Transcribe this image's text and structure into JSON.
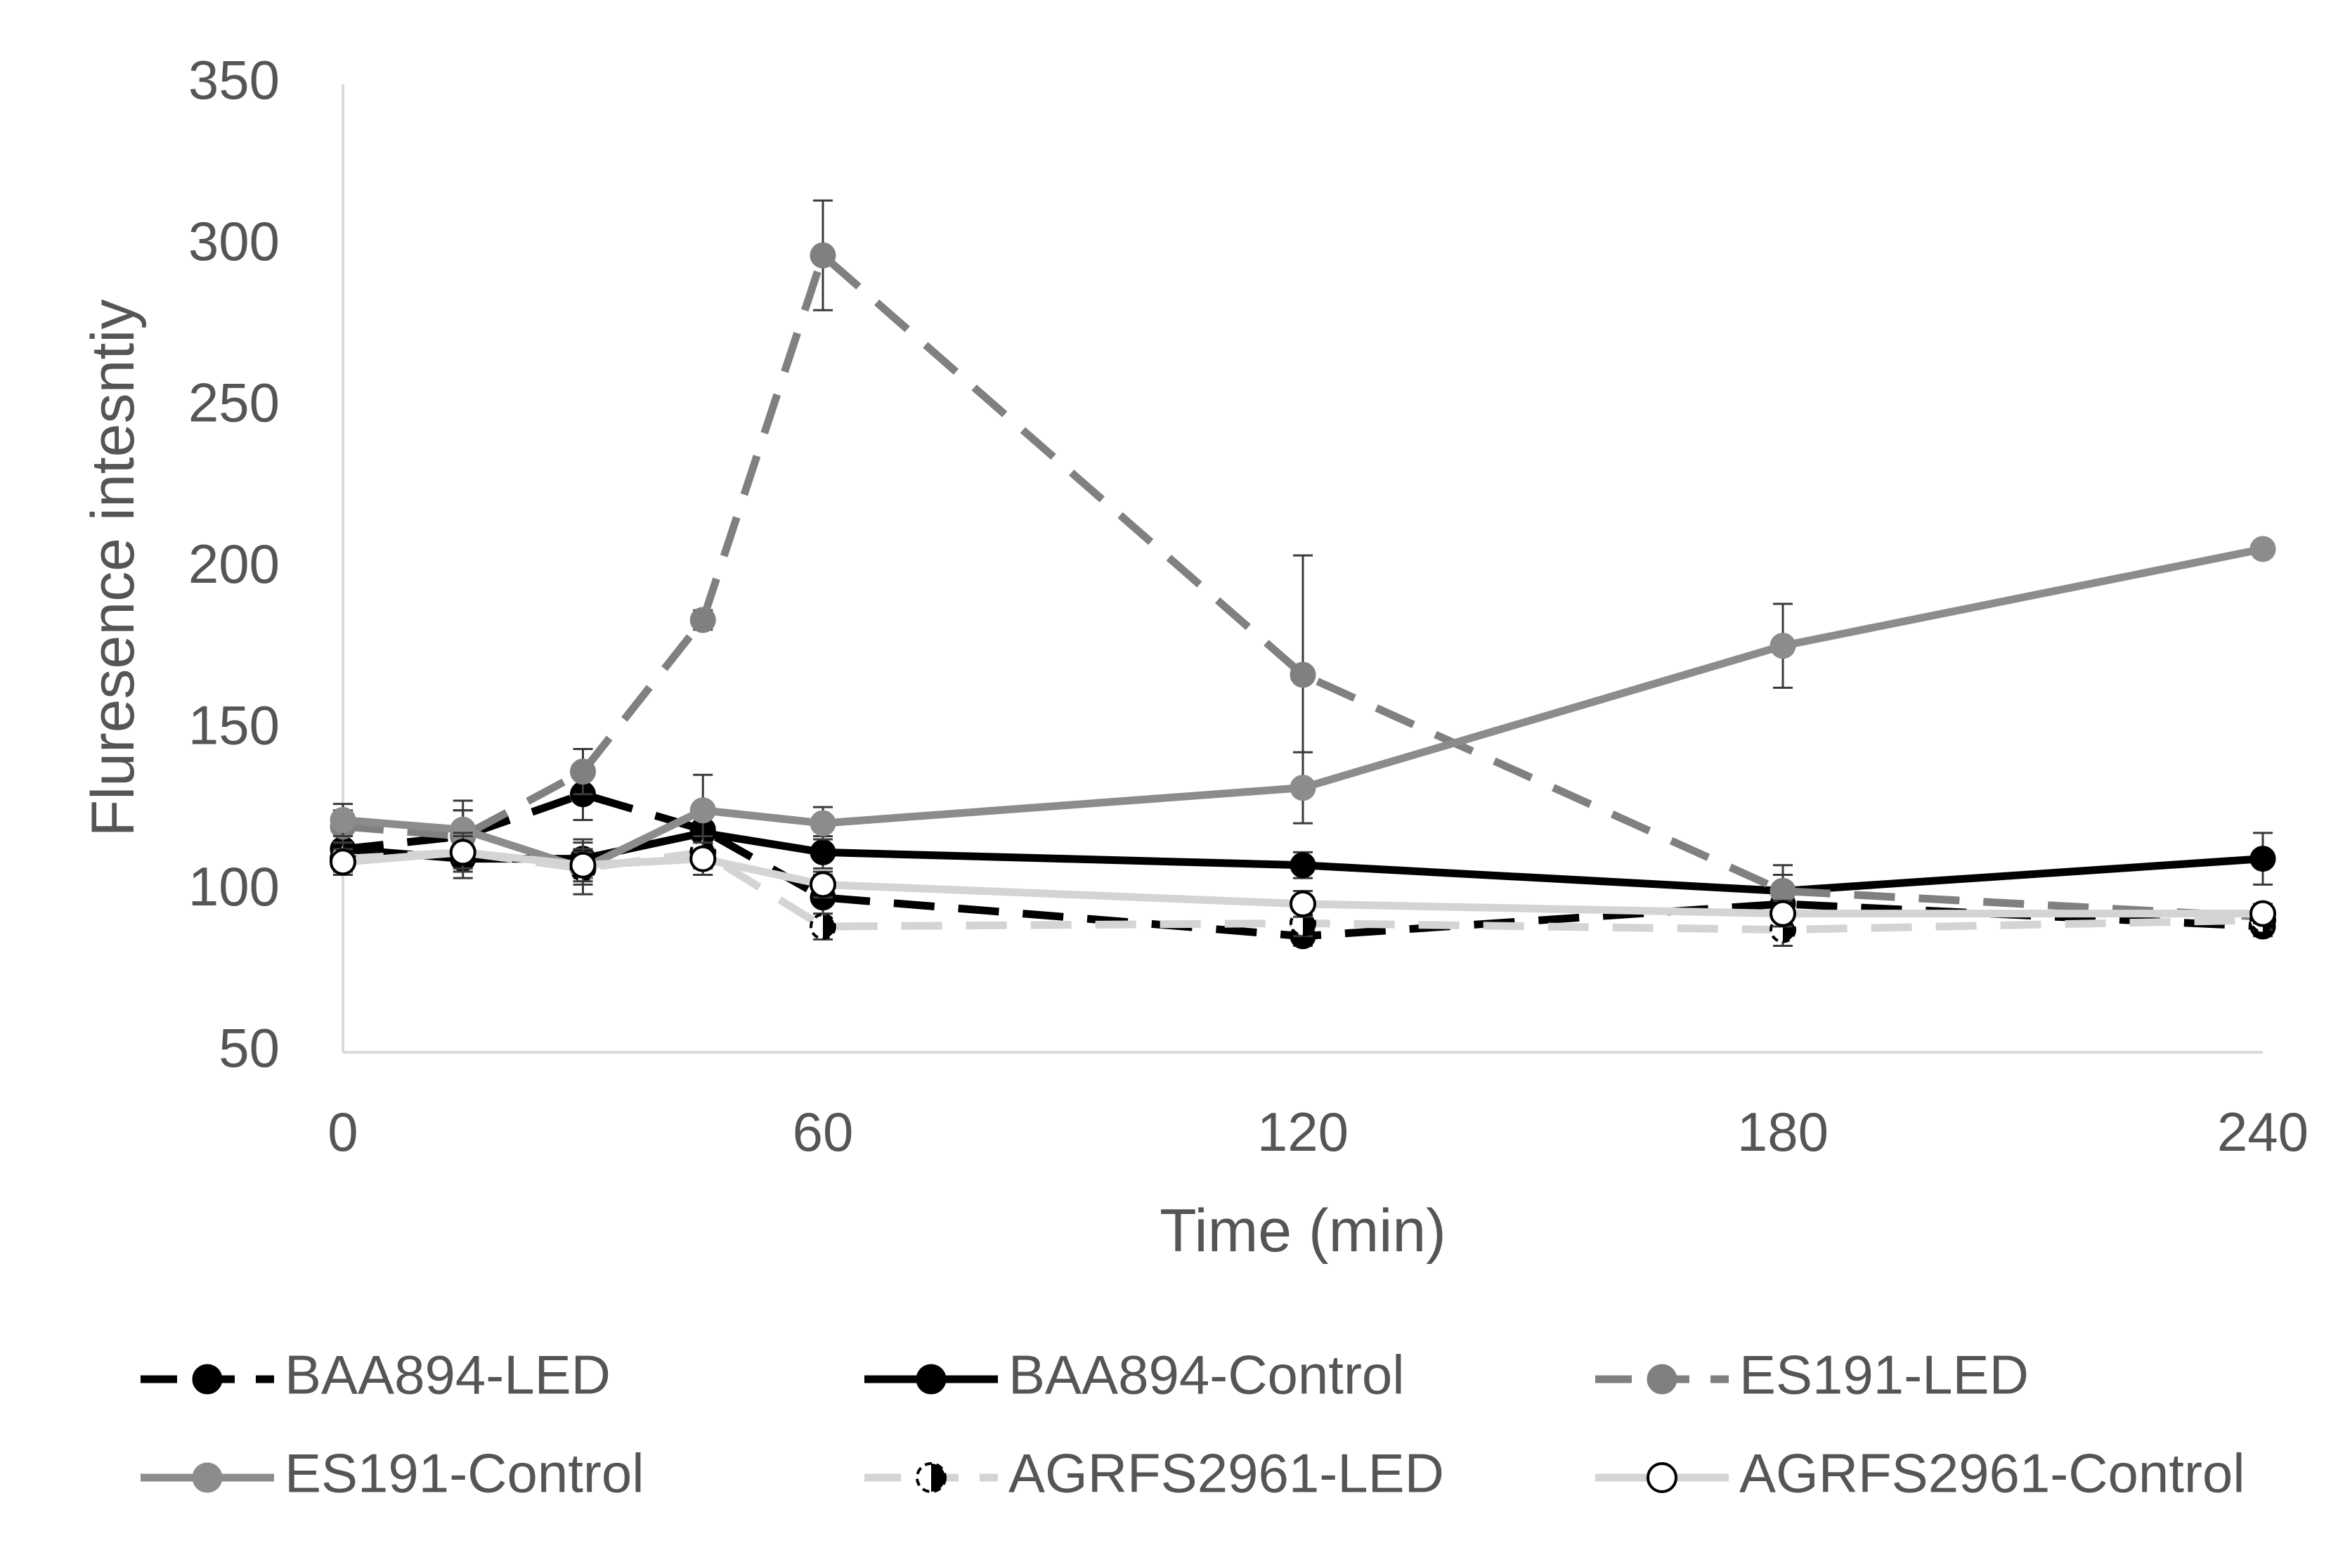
{
  "chart_data": {
    "type": "line",
    "title": "",
    "xlabel": "Time (min)",
    "ylabel": "Fluresence intesntiy",
    "xlim": [
      0,
      240
    ],
    "ylim": [
      50,
      350
    ],
    "x_ticks": [
      "0",
      "60",
      "120",
      "180",
      "240"
    ],
    "y_ticks": [
      "50",
      "100",
      "150",
      "200",
      "250",
      "300",
      "350"
    ],
    "legend_position": "bottom",
    "series": [
      {
        "name": "BAA894-LED",
        "color": "#000000",
        "dash": "dashed",
        "marker": "filled",
        "x": [
          0,
          15,
          30,
          45,
          60,
          120,
          180,
          240
        ],
        "y": [
          113,
          117,
          130,
          119,
          98,
          86,
          96,
          89
        ],
        "err": [
          7,
          8,
          8,
          8,
          7,
          3,
          4,
          3
        ]
      },
      {
        "name": "BAA894-Control",
        "color": "#000000",
        "dash": "solid",
        "marker": "filled",
        "x": [
          0,
          15,
          30,
          45,
          60,
          120,
          180,
          240
        ],
        "y": [
          113,
          110,
          110,
          118,
          112,
          108,
          100,
          110
        ],
        "err": [
          5,
          6,
          6,
          5,
          5,
          4,
          5,
          8
        ]
      },
      {
        "name": "ES191-LED",
        "color": "#808080",
        "dash": "dashed",
        "marker": "filled",
        "x": [
          0,
          15,
          30,
          45,
          60,
          120,
          180,
          240
        ],
        "y": [
          120,
          117,
          137,
          184,
          297,
          167,
          100,
          92
        ],
        "err": [
          5,
          8,
          7,
          3,
          17,
          37,
          8,
          3
        ]
      },
      {
        "name": "ES191-Control",
        "color": "#8c8c8c",
        "dash": "solid",
        "marker": "filled",
        "x": [
          0,
          15,
          30,
          45,
          60,
          120,
          180,
          240
        ],
        "y": [
          122,
          119,
          107,
          125,
          121,
          132,
          176,
          206
        ],
        "err": [
          5,
          9,
          8,
          11,
          5,
          11,
          13,
          2
        ]
      },
      {
        "name": "AGRFS2961-LED",
        "color": "#d4d4d4",
        "dash": "dashed",
        "marker": "half",
        "x": [
          0,
          15,
          30,
          45,
          60,
          120,
          180,
          240
        ],
        "y": [
          110,
          112,
          107,
          112,
          89,
          90,
          88,
          91
        ],
        "err": [
          5,
          6,
          5,
          5,
          4,
          4,
          5,
          3
        ]
      },
      {
        "name": "AGRFS2961-Control",
        "color": "#d4d4d4",
        "dash": "solid",
        "marker": "open",
        "x": [
          0,
          15,
          30,
          45,
          60,
          120,
          180,
          240
        ],
        "y": [
          109,
          112,
          108,
          110,
          102,
          96,
          93,
          93
        ],
        "err": [
          4,
          5,
          5,
          5,
          4,
          4,
          4,
          3
        ]
      }
    ]
  }
}
